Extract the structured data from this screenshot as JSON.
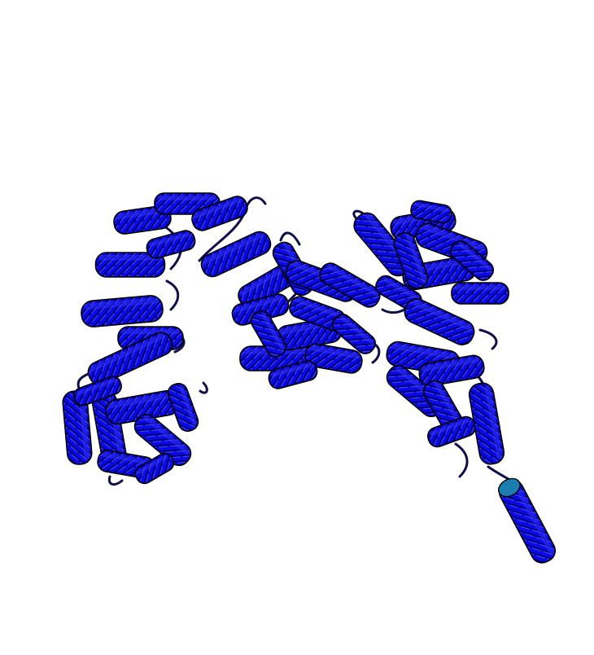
{
  "scene": {
    "background": "#ffffff",
    "colors": {
      "helix": "#0a0ae6",
      "helix_dark": "#0000a8",
      "helix_light": "#3a3aff",
      "outline": "#000000",
      "tail_helix": "#1a7fb0",
      "loop": "#101048"
    }
  }
}
